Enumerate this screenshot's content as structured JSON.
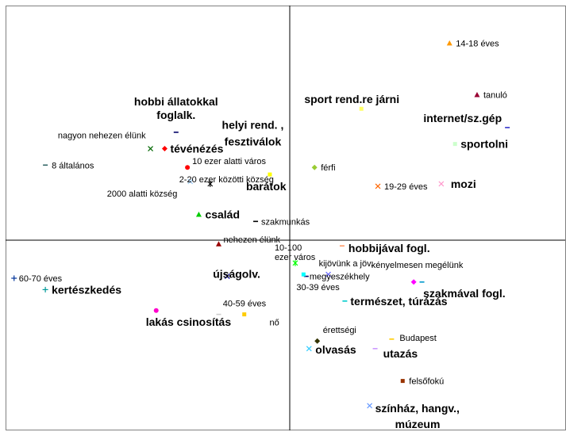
{
  "chart_data": {
    "type": "scatter",
    "title": "",
    "xlabel": "",
    "ylabel": "",
    "xlim": [
      -1.0,
      1.0
    ],
    "ylim": [
      -1.0,
      1.0
    ],
    "grid": false,
    "legend": "none",
    "axis_color": "#000000",
    "frame_color": "#808080",
    "points": [
      {
        "label": "14-18 éves",
        "x": 0.58,
        "y": 0.84,
        "marker": "triangle",
        "color": "#ff9900",
        "bold": false
      },
      {
        "label": "tanuló",
        "x": 0.68,
        "y": 0.62,
        "marker": "triangle",
        "color": "#990033",
        "bold": false
      },
      {
        "label": "sport rend.re járni",
        "x": 0.26,
        "y": 0.56,
        "marker": "square",
        "color": "#ffff66",
        "bold": true
      },
      {
        "label": "internet/sz.gép",
        "x": 0.79,
        "y": 0.48,
        "marker": "dash",
        "color": "#3333cc",
        "bold": true
      },
      {
        "label": "sportolni",
        "x": 0.6,
        "y": 0.41,
        "marker": "square",
        "color": "#ccffcc",
        "bold": true
      },
      {
        "label": "hobbi állatokkal foglalk.",
        "x": -0.4,
        "y": 0.46,
        "marker": "dash",
        "color": "#000066",
        "bold": true
      },
      {
        "label": "helyi rend. , fesztiválok",
        "x": -0.13,
        "y": 0.42,
        "marker": "dash",
        "color": "#cccccc",
        "bold": true
      },
      {
        "label": "nagyon nehezen élünk",
        "x": -0.49,
        "y": 0.39,
        "marker": "x",
        "color": "#006600",
        "bold": false
      },
      {
        "label": "tévénézés",
        "x": -0.44,
        "y": 0.39,
        "marker": "diamond",
        "color": "#ff0000",
        "bold": true
      },
      {
        "label": "8 általános",
        "x": -0.86,
        "y": 0.32,
        "marker": "dash",
        "color": "#336666",
        "bold": false
      },
      {
        "label": "férfi",
        "x": 0.09,
        "y": 0.31,
        "marker": "diamond",
        "color": "#99cc33",
        "bold": false
      },
      {
        "label": "10 ezer alatti város",
        "x": -0.36,
        "y": 0.31,
        "marker": "circle",
        "color": "#ff0000",
        "bold": false
      },
      {
        "label": "barátok",
        "x": -0.07,
        "y": 0.28,
        "marker": "square",
        "color": "#ffff00",
        "bold": true
      },
      {
        "label": "2-20 ezer közötti község",
        "x": -0.35,
        "y": 0.25,
        "marker": "x",
        "color": "#99ccff",
        "bold": false
      },
      {
        "label": "2000 alatti község",
        "x": -0.28,
        "y": 0.24,
        "marker": "star",
        "color": "#000000",
        "bold": false
      },
      {
        "label": "19-29 éves",
        "x": 0.32,
        "y": 0.23,
        "marker": "x",
        "color": "#ff6600",
        "bold": false
      },
      {
        "label": "mozi",
        "x": 0.55,
        "y": 0.24,
        "marker": "x",
        "color": "#ff99cc",
        "bold": true
      },
      {
        "label": "család",
        "x": -0.32,
        "y": 0.11,
        "marker": "triangle",
        "color": "#00cc00",
        "bold": true
      },
      {
        "label": "szakmunkás",
        "x": -0.12,
        "y": 0.08,
        "marker": "dash",
        "color": "#000000",
        "bold": false
      },
      {
        "label": "nehezen élünk",
        "x": -0.25,
        "y": -0.02,
        "marker": "triangle",
        "color": "#990000",
        "bold": false
      },
      {
        "label": "hobbijával fogl.",
        "x": 0.19,
        "y": -0.03,
        "marker": "dash",
        "color": "#ff9966",
        "bold": true
      },
      {
        "label": "10-100 ezer város",
        "x": 0.02,
        "y": -0.12,
        "marker": "star",
        "color": "#00ff00",
        "bold": false
      },
      {
        "label": "kijövünk a jöv.",
        "x": 0.14,
        "y": -0.18,
        "marker": "x",
        "color": "#6666ff",
        "bold": false
      },
      {
        "label": "megyeszékhely",
        "x": 0.06,
        "y": -0.19,
        "marker": "dash",
        "color": "#000066",
        "bold": false
      },
      {
        "label": "30-39 éves",
        "x": 0.05,
        "y": -0.18,
        "marker": "square",
        "color": "#00ffff",
        "bold": false
      },
      {
        "label": "kényelmesen megélünk",
        "x": 0.48,
        "y": -0.22,
        "marker": "dash",
        "color": "#0099cc",
        "bold": false
      },
      {
        "label": "szakmával fogl.",
        "x": 0.45,
        "y": -0.22,
        "marker": "diamond",
        "color": "#ff00ff",
        "bold": true
      },
      {
        "label": "60-70 éves",
        "x": -0.97,
        "y": -0.2,
        "marker": "plus",
        "color": "#003399",
        "bold": false
      },
      {
        "label": "újságolv.",
        "x": -0.22,
        "y": -0.19,
        "marker": "x",
        "color": "#000099",
        "bold": true
      },
      {
        "label": "kertészkedés",
        "x": -0.86,
        "y": -0.26,
        "marker": "plus",
        "color": "#009999",
        "bold": true
      },
      {
        "label": "természet, túrázás",
        "x": 0.2,
        "y": -0.32,
        "marker": "dash",
        "color": "#00cccc",
        "bold": true
      },
      {
        "label": "lakás csinosítás",
        "x": -0.47,
        "y": -0.37,
        "marker": "circle",
        "color": "#ff00cc",
        "bold": true
      },
      {
        "label": "40-59 éves",
        "x": -0.16,
        "y": -0.39,
        "marker": "square",
        "color": "#ffcc00",
        "bold": false
      },
      {
        "label": "nő",
        "x": -0.25,
        "y": -0.39,
        "marker": "dash",
        "color": "#cccccc",
        "bold": false
      },
      {
        "label": "érettségi",
        "x": 0.1,
        "y": -0.53,
        "marker": "diamond",
        "color": "#333300",
        "bold": false
      },
      {
        "label": "olvasás",
        "x": 0.07,
        "y": -0.57,
        "marker": "x",
        "color": "#33ccff",
        "bold": true
      },
      {
        "label": "Budapest",
        "x": 0.37,
        "y": -0.52,
        "marker": "dash",
        "color": "#ffcc00",
        "bold": false
      },
      {
        "label": "utazás",
        "x": 0.31,
        "y": -0.57,
        "marker": "dash",
        "color": "#cc99ff",
        "bold": true
      },
      {
        "label": "felsőfokú",
        "x": 0.41,
        "y": -0.74,
        "marker": "square",
        "color": "#993300",
        "bold": false
      },
      {
        "label": "színház, hangv., múzeum",
        "x": 0.29,
        "y": -0.87,
        "marker": "x",
        "color": "#6699ff",
        "bold": true
      }
    ]
  }
}
